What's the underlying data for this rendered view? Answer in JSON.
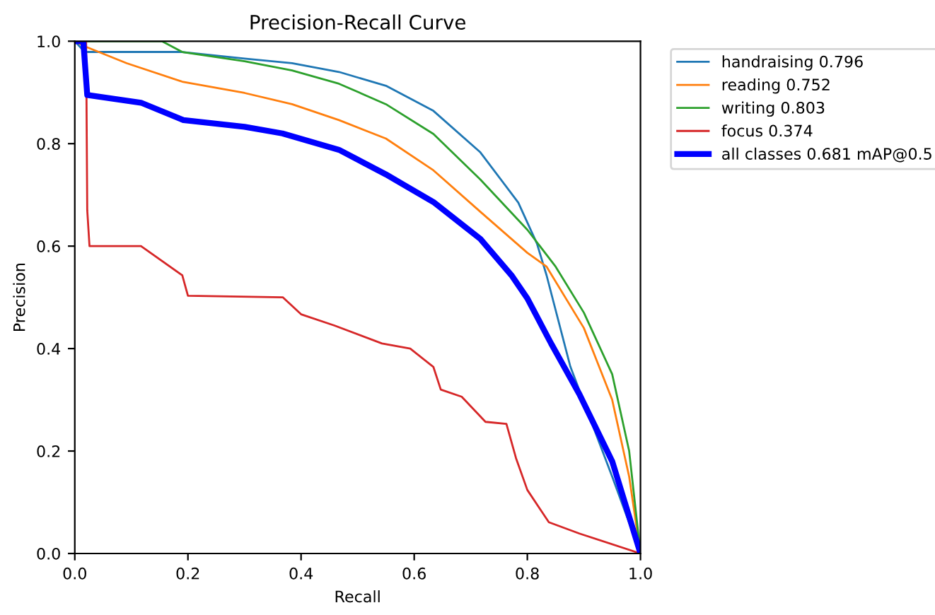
{
  "chart_data": {
    "type": "line",
    "title": "Precision-Recall Curve",
    "xlabel": "Recall",
    "ylabel": "Precision",
    "xlim": [
      0,
      1
    ],
    "ylim": [
      0,
      1
    ],
    "xticks": [
      {
        "value": 0,
        "label": "0.0"
      },
      0.2,
      0.4,
      0.6,
      0.8,
      {
        "value": 1,
        "label": "1.0"
      }
    ],
    "yticks": [
      {
        "value": 0,
        "label": "0.0"
      },
      0.2,
      0.4,
      0.6,
      0.8,
      {
        "value": 1,
        "label": "1.0"
      }
    ],
    "grid": false,
    "legend": "top right",
    "series": [
      {
        "name": "handraising 0.796",
        "color": "#1f77b4",
        "x": [
          0,
          0.0175,
          0.19,
          0.3,
          0.384,
          0.467,
          0.55,
          0.634,
          0.717,
          0.784,
          0.817,
          0.834,
          0.876,
          0.95,
          1.0
        ],
        "values": [
          1.0,
          0.979,
          0.979,
          0.966,
          0.957,
          0.94,
          0.913,
          0.864,
          0.783,
          0.685,
          0.605,
          0.543,
          0.365,
          0.15,
          0.0
        ]
      },
      {
        "name": "reading 0.752",
        "color": "#ff7f0e",
        "x": [
          0,
          0.0175,
          0.092,
          0.19,
          0.3,
          0.384,
          0.467,
          0.55,
          0.634,
          0.717,
          0.8,
          0.834,
          0.9,
          0.95,
          0.98,
          1.0
        ],
        "values": [
          1.0,
          0.99,
          0.957,
          0.921,
          0.899,
          0.877,
          0.846,
          0.81,
          0.748,
          0.667,
          0.587,
          0.56,
          0.44,
          0.3,
          0.15,
          0.0
        ]
      },
      {
        "name": "writing 0.803",
        "color": "#2ca02c",
        "x": [
          0,
          0.154,
          0.19,
          0.3,
          0.384,
          0.467,
          0.55,
          0.634,
          0.717,
          0.8,
          0.85,
          0.9,
          0.95,
          0.98,
          1.0
        ],
        "values": [
          1.0,
          1.0,
          0.979,
          0.961,
          0.943,
          0.917,
          0.877,
          0.819,
          0.73,
          0.632,
          0.56,
          0.47,
          0.35,
          0.2,
          0.0
        ]
      },
      {
        "name": "focus 0.374",
        "color": "#d62728",
        "x": [
          0,
          0.02,
          0.022,
          0.026,
          0.117,
          0.19,
          0.2,
          0.368,
          0.4,
          0.459,
          0.543,
          0.593,
          0.634,
          0.647,
          0.684,
          0.726,
          0.763,
          0.78,
          0.8,
          0.838,
          0.892,
          1.0
        ],
        "values": [
          1.0,
          1.0,
          0.67,
          0.6,
          0.6,
          0.543,
          0.503,
          0.5,
          0.467,
          0.445,
          0.41,
          0.4,
          0.364,
          0.32,
          0.306,
          0.257,
          0.253,
          0.186,
          0.124,
          0.061,
          0.039,
          0.0
        ]
      },
      {
        "name": "all classes 0.681 mAP@0.5",
        "color": "#0000ff",
        "x": [
          0,
          0.015,
          0.022,
          0.117,
          0.192,
          0.3,
          0.367,
          0.467,
          0.55,
          0.634,
          0.717,
          0.772,
          0.8,
          0.842,
          0.892,
          0.95,
          1.0
        ],
        "values": [
          1.0,
          1.0,
          0.895,
          0.88,
          0.846,
          0.833,
          0.82,
          0.788,
          0.74,
          0.686,
          0.614,
          0.543,
          0.498,
          0.41,
          0.311,
          0.18,
          0.0
        ]
      }
    ]
  }
}
